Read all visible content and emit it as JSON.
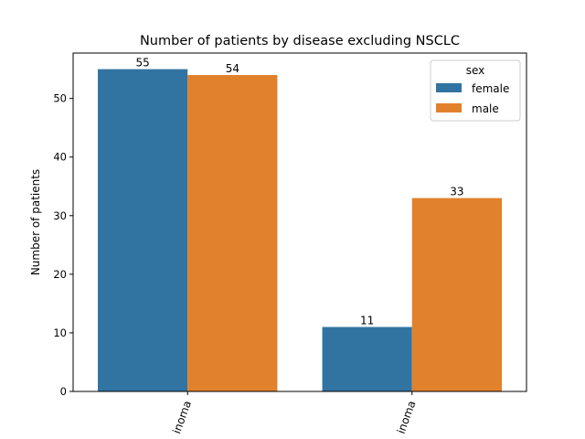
{
  "chart_data": {
    "type": "bar",
    "title": "Number of patients by disease excluding NSCLC",
    "xlabel": "",
    "ylabel": "Number of patients",
    "categories": [
      "inoma",
      "inoma"
    ],
    "series": [
      {
        "name": "female",
        "values": [
          55,
          11
        ],
        "color": "#3274a1"
      },
      {
        "name": "male",
        "values": [
          54,
          33
        ],
        "color": "#e1812c"
      }
    ],
    "ylim": [
      0,
      57.75
    ],
    "yticks": [
      0,
      10,
      20,
      30,
      40,
      50
    ],
    "data_labels": true,
    "grid": false,
    "legend": {
      "title": "sex",
      "position": "top-right"
    }
  }
}
